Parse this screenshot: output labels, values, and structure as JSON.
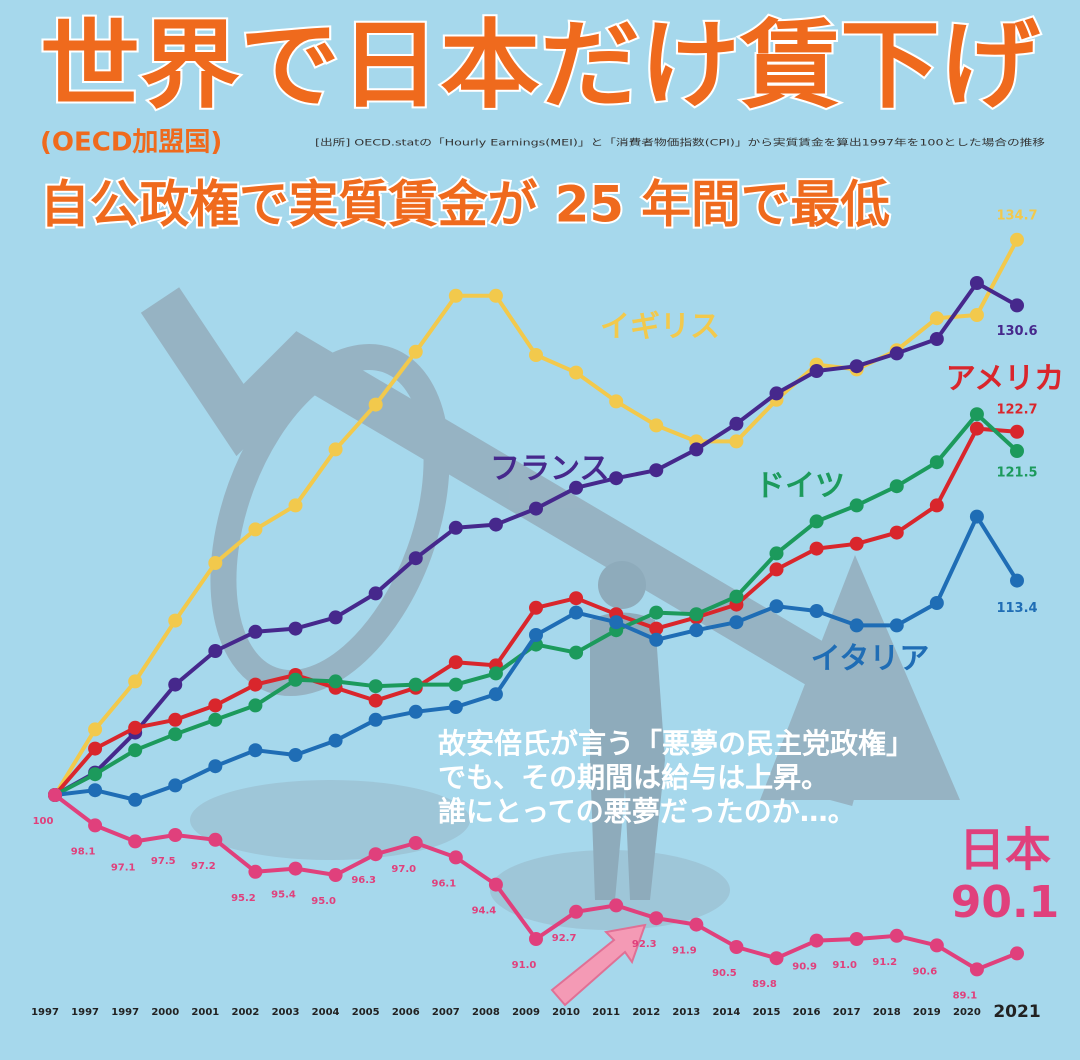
{
  "chart_data": {
    "type": "line",
    "title": "世界で日本だけ賃下げ",
    "subtitle": "(OECD加盟国)",
    "note": "[出所] OECD.statの「Hourly Earnings(MEI)」と「消費者物価指数(CPI)」から実質賃金を算出1997年を100とした場合の推移",
    "headline": "自公政権で実質賃金が 25 年間で最低",
    "annotation": [
      "故安倍氏が言う「悪夢の民主党政権」",
      "でも、その期間は給与は上昇。",
      "誰にとっての悪夢だったのか…。"
    ],
    "categories": [
      "1997",
      "1997",
      "1997",
      "2000",
      "2001",
      "2002",
      "2003",
      "2004",
      "2005",
      "2006",
      "2007",
      "2008",
      "2009",
      "2010",
      "2011",
      "2012",
      "2013",
      "2014",
      "2015",
      "2016",
      "2017",
      "2018",
      "2019",
      "2020",
      "2021"
    ],
    "ylim": [
      88,
      136
    ],
    "series": [
      {
        "name": "イギリス",
        "color": "#f2c94c",
        "values": [
          100,
          104.1,
          107.1,
          110.9,
          114.5,
          116.6,
          118.1,
          121.6,
          124.4,
          127.7,
          131.2,
          131.2,
          127.5,
          126.4,
          124.6,
          123.1,
          122.1,
          122.1,
          124.7,
          126.9,
          126.6,
          127.8,
          129.8,
          130.0,
          134.7
        ],
        "value_labels": [
          null,
          null,
          null,
          null,
          null,
          null,
          null,
          null,
          null,
          null,
          null,
          null,
          null,
          null,
          null,
          null,
          null,
          null,
          null,
          null,
          null,
          null,
          null,
          null,
          "134.7"
        ]
      },
      {
        "name": "フランス",
        "color": "#46288c",
        "values": [
          100,
          101.4,
          103.9,
          106.9,
          109.0,
          110.2,
          110.4,
          111.1,
          112.6,
          114.8,
          116.7,
          116.9,
          117.9,
          119.2,
          119.8,
          120.3,
          121.6,
          123.2,
          125.1,
          126.5,
          126.8,
          127.6,
          128.5,
          132.0,
          130.6
        ],
        "value_labels": [
          null,
          null,
          null,
          null,
          null,
          null,
          null,
          null,
          null,
          null,
          null,
          null,
          null,
          null,
          null,
          null,
          null,
          null,
          null,
          null,
          null,
          null,
          null,
          null,
          "130.6"
        ]
      },
      {
        "name": "アメリカ",
        "color": "#d9262c",
        "values": [
          100,
          102.9,
          104.2,
          104.7,
          105.6,
          106.9,
          107.5,
          106.7,
          105.9,
          106.7,
          108.3,
          108.1,
          111.7,
          112.3,
          111.3,
          110.4,
          111.1,
          111.9,
          114.1,
          115.4,
          115.7,
          116.4,
          118.1,
          122.9,
          122.7
        ],
        "value_labels": [
          null,
          null,
          null,
          null,
          null,
          null,
          null,
          null,
          null,
          null,
          null,
          null,
          null,
          null,
          null,
          null,
          null,
          null,
          null,
          null,
          null,
          null,
          null,
          null,
          "122.7"
        ]
      },
      {
        "name": "ドイツ",
        "color": "#1c9a5c",
        "values": [
          100,
          101.3,
          102.8,
          103.8,
          104.7,
          105.6,
          107.2,
          107.1,
          106.8,
          106.9,
          106.9,
          107.6,
          109.4,
          108.9,
          110.3,
          111.4,
          111.3,
          112.4,
          115.1,
          117.1,
          118.1,
          119.3,
          120.8,
          123.8,
          121.5
        ],
        "value_labels": [
          null,
          null,
          null,
          null,
          null,
          null,
          null,
          null,
          null,
          null,
          null,
          null,
          null,
          null,
          null,
          null,
          null,
          null,
          null,
          null,
          null,
          null,
          null,
          null,
          "121.5"
        ]
      },
      {
        "name": "イタリア",
        "color": "#1f6db5",
        "values": [
          100,
          100.3,
          99.7,
          100.6,
          101.8,
          102.8,
          102.5,
          103.4,
          104.7,
          105.2,
          105.5,
          106.3,
          110.0,
          111.4,
          110.8,
          109.7,
          110.3,
          110.8,
          111.8,
          111.5,
          110.6,
          110.6,
          112.0,
          117.4,
          113.4
        ],
        "value_labels": [
          null,
          null,
          null,
          null,
          null,
          null,
          null,
          null,
          null,
          null,
          null,
          null,
          null,
          null,
          null,
          null,
          null,
          null,
          null,
          null,
          null,
          null,
          null,
          null,
          "113.4"
        ]
      },
      {
        "name": "日本",
        "color": "#e0407c",
        "values": [
          100,
          98.1,
          97.1,
          97.5,
          97.2,
          95.2,
          95.4,
          95.0,
          96.3,
          97.0,
          96.1,
          94.4,
          91.0,
          92.7,
          93.1,
          92.3,
          91.9,
          90.5,
          89.8,
          90.9,
          91.0,
          91.2,
          90.6,
          89.1,
          90.1
        ],
        "value_labels": [
          "100",
          "98.1",
          "97.1",
          "97.5",
          "97.2",
          "95.2",
          "95.4",
          "95.0",
          "96.3",
          "97.0",
          "96.1",
          "94.4",
          "91.0",
          "92.7",
          null,
          "92.3",
          "91.9",
          "90.5",
          "89.8",
          "90.9",
          "91.0",
          "91.2",
          "90.6",
          "89.1",
          "90.1"
        ]
      }
    ]
  }
}
